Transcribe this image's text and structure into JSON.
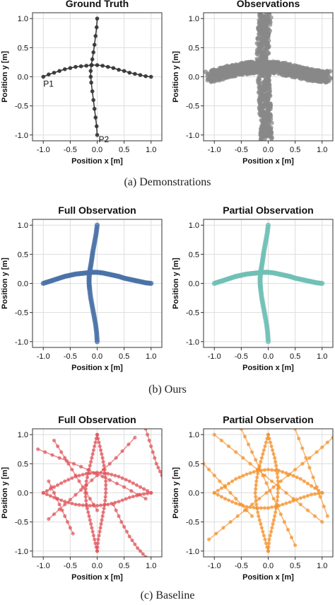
{
  "captions": [
    "(a)  Demonstrations",
    "(b)  Ours",
    "(c)  Baseline"
  ],
  "chart_data": [
    {
      "type": "scatter",
      "title": "Ground Truth",
      "xlabel": "Position x [m]",
      "ylabel": "Position y [m]",
      "xlim": [
        -1.2,
        1.2
      ],
      "ylim": [
        -1.1,
        1.1
      ],
      "xticks": [
        -1.0,
        -0.5,
        0.0,
        0.5,
        1.0
      ],
      "yticks": [
        -1.0,
        -0.5,
        0.0,
        0.5,
        1.0
      ],
      "grid": true,
      "color": "#333333",
      "annotations": [
        {
          "text": "P1",
          "x": -1.0,
          "y": -0.05
        },
        {
          "text": "P2",
          "x": 0.0,
          "y": -1.0
        }
      ],
      "series": [
        {
          "x": [
            -1.0,
            -0.9,
            -0.8,
            -0.7,
            -0.6,
            -0.5,
            -0.4,
            -0.3,
            -0.2,
            -0.1,
            0.0,
            0.1,
            0.2,
            0.3,
            0.4,
            0.5,
            0.6,
            0.7,
            0.8,
            0.9,
            1.0
          ],
          "y": [
            0.0,
            0.04,
            0.07,
            0.1,
            0.13,
            0.15,
            0.17,
            0.18,
            0.19,
            0.2,
            0.2,
            0.19,
            0.17,
            0.15,
            0.12,
            0.1,
            0.07,
            0.05,
            0.03,
            0.01,
            0.0
          ]
        },
        {
          "x": [
            0.0,
            -0.01,
            -0.03,
            -0.05,
            -0.07,
            -0.09,
            -0.11,
            -0.12,
            -0.12,
            -0.11,
            -0.09,
            -0.07,
            -0.05,
            -0.03,
            -0.01,
            0.0
          ],
          "y": [
            1.0,
            0.85,
            0.7,
            0.55,
            0.42,
            0.3,
            0.2,
            0.1,
            0.0,
            -0.1,
            -0.25,
            -0.4,
            -0.55,
            -0.7,
            -0.85,
            -1.0
          ]
        }
      ]
    },
    {
      "type": "scatter",
      "title": "Observations",
      "xlabel": "Position x [m]",
      "ylabel": "Position y [m]",
      "xlim": [
        -1.2,
        1.2
      ],
      "ylim": [
        -1.1,
        1.1
      ],
      "xticks": [
        -1.0,
        -0.5,
        0.0,
        0.5,
        1.0
      ],
      "yticks": [
        -1.0,
        -0.5,
        0.0,
        0.5,
        1.0
      ],
      "grid": true,
      "color": "#888888",
      "series": [
        {
          "x": [
            -1.1,
            -1.0,
            -0.9,
            -0.8,
            -0.7,
            -0.6,
            -0.5,
            -0.4,
            -0.3,
            -0.2,
            -0.1,
            0.0,
            0.1,
            0.2,
            0.3,
            0.4,
            0.5,
            0.6,
            0.7,
            0.8,
            0.9,
            1.0,
            1.1
          ],
          "y": [
            0.0,
            0.02,
            0.05,
            0.08,
            0.1,
            0.12,
            0.14,
            0.15,
            0.16,
            0.17,
            0.17,
            0.17,
            0.16,
            0.15,
            0.13,
            0.11,
            0.09,
            0.07,
            0.05,
            0.03,
            0.02,
            0.0,
            0.0
          ]
        },
        {
          "x": [
            -0.05,
            -0.07,
            -0.09,
            -0.1,
            -0.1,
            -0.09,
            -0.08,
            -0.07,
            -0.06,
            -0.05,
            -0.04,
            -0.03
          ],
          "y": [
            1.1,
            0.9,
            0.7,
            0.5,
            0.3,
            0.1,
            -0.1,
            -0.3,
            -0.5,
            -0.7,
            -0.9,
            -1.05
          ]
        }
      ]
    },
    {
      "type": "scatter",
      "title": "Full Observation",
      "xlabel": "Position x [m]",
      "ylabel": "Position y [m]",
      "xlim": [
        -1.2,
        1.2
      ],
      "ylim": [
        -1.1,
        1.1
      ],
      "xticks": [
        -1.0,
        -0.5,
        0.0,
        0.5,
        1.0
      ],
      "yticks": [
        -1.0,
        -0.5,
        0.0,
        0.5,
        1.0
      ],
      "grid": true,
      "color": "#4a72a8",
      "series": [
        {
          "x": [
            -1.0,
            -0.9,
            -0.8,
            -0.7,
            -0.6,
            -0.5,
            -0.4,
            -0.3,
            -0.2,
            -0.1,
            0.0,
            0.1,
            0.2,
            0.3,
            0.4,
            0.5,
            0.6,
            0.7,
            0.8,
            0.9,
            1.0
          ],
          "y": [
            0.0,
            0.03,
            0.06,
            0.09,
            0.12,
            0.14,
            0.16,
            0.17,
            0.18,
            0.19,
            0.19,
            0.18,
            0.16,
            0.14,
            0.12,
            0.09,
            0.07,
            0.05,
            0.03,
            0.01,
            0.0
          ]
        },
        {
          "x": [
            0.0,
            -0.02,
            -0.05,
            -0.08,
            -0.1,
            -0.12,
            -0.14,
            -0.15,
            -0.15,
            -0.14,
            -0.12,
            -0.09,
            -0.06,
            -0.03,
            -0.01,
            0.0
          ],
          "y": [
            1.0,
            0.85,
            0.7,
            0.55,
            0.42,
            0.3,
            0.2,
            0.1,
            0.0,
            -0.1,
            -0.25,
            -0.4,
            -0.55,
            -0.7,
            -0.85,
            -1.0
          ]
        }
      ]
    },
    {
      "type": "scatter",
      "title": "Partial Observation",
      "xlabel": "Position x [m]",
      "ylabel": "Position y [m]",
      "xlim": [
        -1.2,
        1.2
      ],
      "ylim": [
        -1.1,
        1.1
      ],
      "xticks": [
        -1.0,
        -0.5,
        0.0,
        0.5,
        1.0
      ],
      "yticks": [
        -1.0,
        -0.5,
        0.0,
        0.5,
        1.0
      ],
      "grid": true,
      "color": "#6fbfb5",
      "series": [
        {
          "x": [
            -1.0,
            -0.9,
            -0.8,
            -0.7,
            -0.6,
            -0.5,
            -0.4,
            -0.3,
            -0.2,
            -0.1,
            0.0,
            0.1,
            0.2,
            0.3,
            0.4,
            0.5,
            0.6,
            0.7,
            0.8,
            0.9,
            1.0
          ],
          "y": [
            0.0,
            0.03,
            0.06,
            0.09,
            0.12,
            0.14,
            0.16,
            0.17,
            0.18,
            0.19,
            0.19,
            0.18,
            0.16,
            0.14,
            0.12,
            0.09,
            0.07,
            0.05,
            0.03,
            0.01,
            0.0
          ]
        },
        {
          "x": [
            0.0,
            -0.02,
            -0.05,
            -0.08,
            -0.1,
            -0.12,
            -0.14,
            -0.15,
            -0.15,
            -0.14,
            -0.12,
            -0.09,
            -0.06,
            -0.03,
            -0.01,
            0.0
          ],
          "y": [
            1.0,
            0.85,
            0.7,
            0.55,
            0.42,
            0.3,
            0.2,
            0.1,
            0.0,
            -0.1,
            -0.25,
            -0.4,
            -0.55,
            -0.7,
            -0.85,
            -1.0
          ]
        }
      ]
    },
    {
      "type": "line",
      "title": "Full Observation",
      "xlabel": "Position x [m]",
      "ylabel": "Position y [m]",
      "xlim": [
        -1.2,
        1.2
      ],
      "ylim": [
        -1.1,
        1.1
      ],
      "xticks": [
        -1.0,
        -0.5,
        0.0,
        0.5,
        1.0
      ],
      "yticks": [
        -1.0,
        -0.5,
        0.0,
        0.5,
        1.0
      ],
      "grid": true,
      "color": "#e0565b",
      "series": [
        {
          "x": [
            -1.0,
            -0.8,
            -0.6,
            -0.4,
            -0.2,
            0.0,
            0.2,
            0.4,
            0.6,
            0.8,
            1.0
          ],
          "y": [
            0.0,
            0.1,
            0.2,
            0.28,
            0.33,
            0.35,
            0.33,
            0.28,
            0.2,
            0.1,
            0.0
          ]
        },
        {
          "x": [
            -1.0,
            -0.8,
            -0.6,
            -0.4,
            -0.2,
            0.0,
            0.2,
            0.4,
            0.6,
            0.8,
            1.0
          ],
          "y": [
            0.0,
            -0.08,
            -0.15,
            -0.2,
            -0.22,
            -0.22,
            -0.2,
            -0.15,
            -0.08,
            -0.03,
            0.0
          ]
        },
        {
          "x": [
            0.0,
            -0.05,
            -0.1,
            -0.15,
            -0.2,
            -0.22,
            -0.2,
            -0.15,
            -0.1,
            -0.05,
            0.0
          ],
          "y": [
            1.0,
            0.8,
            0.6,
            0.4,
            0.2,
            0.0,
            -0.2,
            -0.4,
            -0.6,
            -0.8,
            -1.0
          ]
        },
        {
          "x": [
            0.0,
            0.05,
            0.1,
            0.14,
            0.16,
            0.16,
            0.14,
            0.1,
            0.06,
            0.02,
            0.0
          ],
          "y": [
            1.0,
            0.8,
            0.6,
            0.4,
            0.2,
            0.0,
            -0.2,
            -0.4,
            -0.6,
            -0.8,
            -1.0
          ]
        },
        {
          "x": [
            -0.9,
            -0.6,
            -0.3,
            0.0,
            0.35,
            0.7
          ],
          "y": [
            -0.45,
            -0.2,
            0.05,
            0.3,
            0.6,
            0.95
          ]
        },
        {
          "x": [
            -1.1,
            -0.7,
            -0.3,
            0.1,
            0.5,
            0.9
          ],
          "y": [
            0.75,
            0.6,
            0.45,
            0.28,
            0.1,
            -0.1
          ]
        },
        {
          "x": [
            -0.8,
            -0.6,
            -0.4,
            -0.2,
            0.0
          ],
          "y": [
            0.9,
            0.6,
            0.3,
            0.0,
            -0.3
          ]
        },
        {
          "x": [
            0.3,
            0.45,
            0.6,
            0.75,
            0.9
          ],
          "y": [
            -0.2,
            -0.5,
            -0.75,
            -0.95,
            -1.1
          ]
        },
        {
          "x": [
            -0.9,
            -0.75,
            -0.6,
            -0.45
          ],
          "y": [
            0.2,
            -0.1,
            -0.4,
            -0.7
          ]
        },
        {
          "x": [
            0.9,
            1.0,
            1.1,
            1.2
          ],
          "y": [
            1.1,
            0.8,
            0.5,
            0.3
          ]
        }
      ]
    },
    {
      "type": "line",
      "title": "Partial Observation",
      "xlabel": "Position x [m]",
      "ylabel": "Position y [m]",
      "xlim": [
        -1.2,
        1.2
      ],
      "ylim": [
        -1.1,
        1.1
      ],
      "xticks": [
        -1.0,
        -0.5,
        0.0,
        0.5,
        1.0
      ],
      "yticks": [
        -1.0,
        -0.5,
        0.0,
        0.5,
        1.0
      ],
      "grid": true,
      "color": "#f5922b",
      "series": [
        {
          "x": [
            -1.0,
            -0.8,
            -0.6,
            -0.4,
            -0.2,
            0.0,
            0.2,
            0.4,
            0.6,
            0.8,
            1.0
          ],
          "y": [
            0.0,
            0.12,
            0.24,
            0.32,
            0.38,
            0.4,
            0.38,
            0.32,
            0.24,
            0.12,
            0.0
          ]
        },
        {
          "x": [
            -1.0,
            -0.8,
            -0.6,
            -0.4,
            -0.2,
            0.0,
            0.2,
            0.4,
            0.6,
            0.8,
            1.0
          ],
          "y": [
            0.0,
            -0.1,
            -0.18,
            -0.24,
            -0.26,
            -0.26,
            -0.22,
            -0.16,
            -0.09,
            -0.03,
            0.0
          ]
        },
        {
          "x": [
            0.0,
            -0.06,
            -0.12,
            -0.18,
            -0.22,
            -0.24,
            -0.22,
            -0.18,
            -0.12,
            -0.06,
            0.0
          ],
          "y": [
            1.0,
            0.8,
            0.6,
            0.4,
            0.2,
            0.0,
            -0.2,
            -0.4,
            -0.6,
            -0.8,
            -1.0
          ]
        },
        {
          "x": [
            0.0,
            0.06,
            0.12,
            0.16,
            0.18,
            0.18,
            0.16,
            0.12,
            0.07,
            0.02,
            0.0
          ],
          "y": [
            1.0,
            0.8,
            0.6,
            0.4,
            0.2,
            0.0,
            -0.2,
            -0.4,
            -0.6,
            -0.8,
            -1.0
          ]
        },
        {
          "x": [
            -1.1,
            -0.7,
            -0.3,
            0.1,
            0.5,
            0.9,
            1.2
          ],
          "y": [
            -0.8,
            -0.5,
            -0.2,
            0.1,
            0.4,
            0.7,
            0.95
          ]
        },
        {
          "x": [
            -1.0,
            -0.6,
            -0.2,
            0.2,
            0.6,
            1.0
          ],
          "y": [
            1.0,
            0.7,
            0.4,
            0.1,
            -0.2,
            -0.5
          ]
        },
        {
          "x": [
            -0.5,
            -0.3,
            -0.1,
            0.1,
            0.3,
            0.5
          ],
          "y": [
            1.1,
            0.7,
            0.3,
            -0.1,
            -0.5,
            -0.9
          ]
        },
        {
          "x": [
            0.5,
            0.7,
            0.9,
            1.1
          ],
          "y": [
            1.1,
            0.6,
            0.1,
            -0.4
          ]
        },
        {
          "x": [
            -1.2,
            -0.9,
            -0.6,
            -0.3
          ],
          "y": [
            0.5,
            0.2,
            -0.1,
            -0.4
          ]
        }
      ]
    }
  ]
}
